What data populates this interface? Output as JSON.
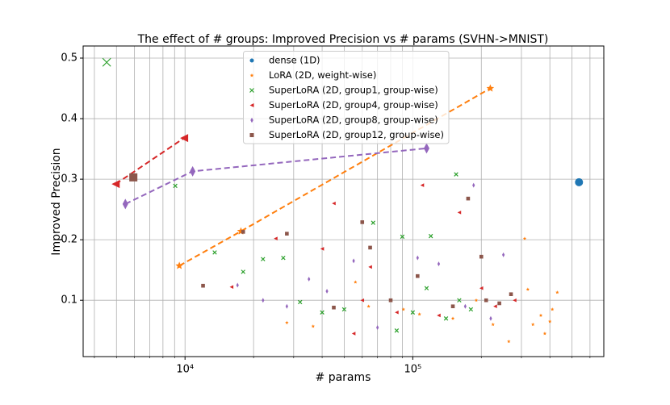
{
  "chart_data": {
    "type": "scatter",
    "title": "The effect of # groups: Improved Precision vs # params (SVHN->MNIST)",
    "xlabel": "# params",
    "ylabel": "Improved Precision",
    "xscale": "log",
    "grid": true,
    "legend": "upper center",
    "xlim": [
      3570,
      690000
    ],
    "ylim": [
      0.007,
      0.52
    ],
    "xticks": [
      {
        "value": 10000,
        "label": "10⁴"
      },
      {
        "value": 100000,
        "label": "10⁵"
      }
    ],
    "xminorticks": [
      4000,
      5000,
      6000,
      7000,
      8000,
      9000,
      20000,
      30000,
      40000,
      50000,
      60000,
      70000,
      80000,
      90000,
      200000,
      300000,
      400000,
      500000,
      600000
    ],
    "yticks": [
      0.1,
      0.2,
      0.3,
      0.4,
      0.5
    ],
    "series": [
      {
        "name": "dense (1D)",
        "color": "#1f77b4",
        "marker": "circle",
        "frontier_indices": [
          0
        ],
        "x": [
          537000
        ],
        "values": [
          0.295
        ]
      },
      {
        "name": "LoRA (2D, weight-wise)",
        "color": "#ff7f0e",
        "marker": "star",
        "frontier_indices": [
          0,
          1,
          2
        ],
        "x": [
          9440,
          17600,
          219000,
          28000,
          36500,
          56000,
          64000,
          91000,
          107000,
          150000,
          190000,
          225000,
          264000,
          310000,
          320000,
          337000,
          365000,
          400000,
          410000,
          431000,
          380000
        ],
        "values": [
          0.157,
          0.214,
          0.45,
          0.063,
          0.057,
          0.13,
          0.09,
          0.085,
          0.077,
          0.07,
          0.1,
          0.06,
          0.032,
          0.202,
          0.118,
          0.06,
          0.075,
          0.065,
          0.085,
          0.113,
          0.045
        ]
      },
      {
        "name": "SuperLoRA (2D, group1, group-wise)",
        "color": "#2ca02c",
        "marker": "x",
        "frontier_indices": [
          0
        ],
        "x": [
          4530,
          9060,
          13500,
          18000,
          22000,
          27000,
          32000,
          40000,
          50000,
          67000,
          90000,
          100000,
          120000,
          140000,
          155000,
          160000,
          180000,
          85000,
          115000
        ],
        "values": [
          0.493,
          0.289,
          0.179,
          0.147,
          0.168,
          0.17,
          0.097,
          0.08,
          0.085,
          0.228,
          0.205,
          0.08,
          0.206,
          0.07,
          0.308,
          0.1,
          0.085,
          0.05,
          0.12
        ]
      },
      {
        "name": "SuperLoRA (2D, group4, group-wise)",
        "color": "#d62728",
        "marker": "tri-left",
        "frontier_indices": [
          0,
          1
        ],
        "x": [
          4960,
          9910,
          16000,
          25000,
          40000,
          45000,
          55000,
          65000,
          85000,
          110000,
          130000,
          160000,
          200000,
          230000,
          280000,
          60000
        ],
        "values": [
          0.292,
          0.368,
          0.122,
          0.202,
          0.185,
          0.26,
          0.045,
          0.155,
          0.08,
          0.29,
          0.075,
          0.245,
          0.12,
          0.09,
          0.1,
          0.1
        ]
      },
      {
        "name": "SuperLoRA (2D, group8, group-wise)",
        "color": "#9467bd",
        "marker": "diamond",
        "frontier_indices": [
          0,
          1,
          2
        ],
        "x": [
          5470,
          10800,
          115000,
          17000,
          22000,
          28000,
          35000,
          42000,
          55000,
          70000,
          105000,
          130000,
          170000,
          185000,
          250000,
          220000
        ],
        "values": [
          0.259,
          0.313,
          0.351,
          0.125,
          0.1,
          0.09,
          0.135,
          0.115,
          0.165,
          0.055,
          0.17,
          0.16,
          0.09,
          0.29,
          0.175,
          0.07
        ]
      },
      {
        "name": "SuperLoRA (2D, group12, group-wise)",
        "color": "#8c564b",
        "marker": "square",
        "frontier_indices": [
          0
        ],
        "x": [
          5930,
          12000,
          18000,
          28000,
          45000,
          60000,
          65000,
          80000,
          105000,
          150000,
          175000,
          200000,
          210000,
          240000,
          270000
        ],
        "values": [
          0.303,
          0.124,
          0.213,
          0.21,
          0.088,
          0.229,
          0.187,
          0.1,
          0.14,
          0.09,
          0.268,
          0.172,
          0.1,
          0.095,
          0.11
        ]
      }
    ]
  }
}
